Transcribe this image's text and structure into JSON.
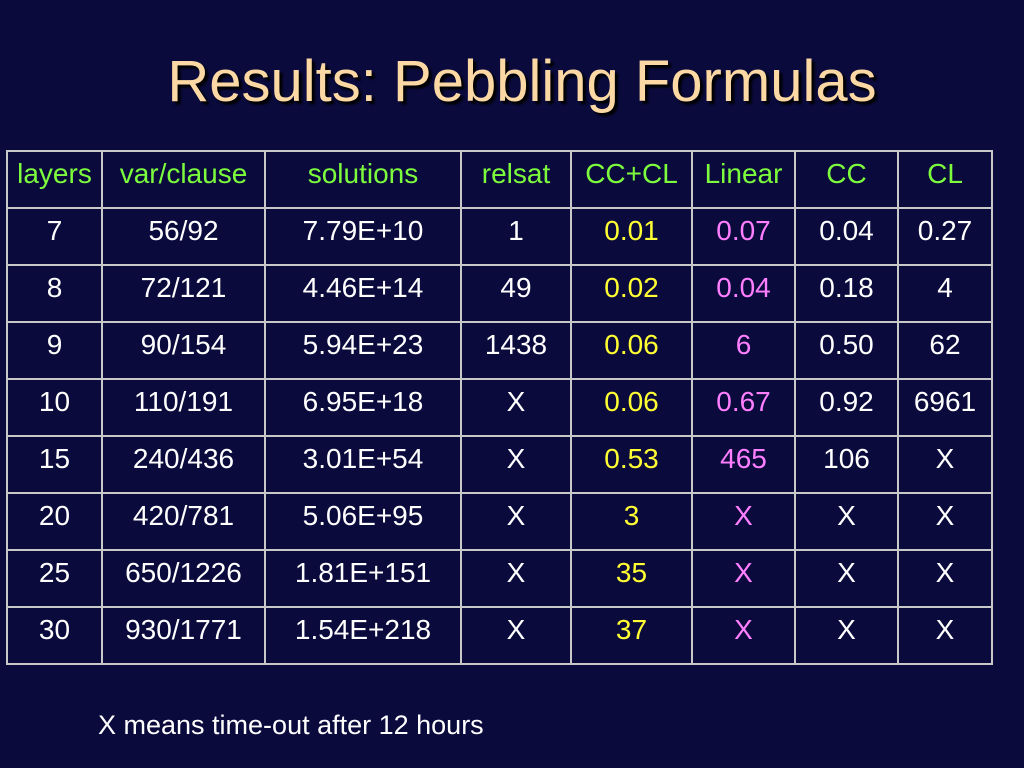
{
  "title": "Results: Pebbling Formulas",
  "table": {
    "headers": [
      "layers",
      "var/clause",
      "solutions",
      "relsat",
      "CC+CL",
      "Linear",
      "CC",
      "CL"
    ],
    "rows": [
      [
        "7",
        "56/92",
        "7.79E+10",
        "1",
        "0.01",
        "0.07",
        "0.04",
        "0.27"
      ],
      [
        "8",
        "72/121",
        "4.46E+14",
        "49",
        "0.02",
        "0.04",
        "0.18",
        "4"
      ],
      [
        "9",
        "90/154",
        "5.94E+23",
        "1438",
        "0.06",
        "6",
        "0.50",
        "62"
      ],
      [
        "10",
        "110/191",
        "6.95E+18",
        "X",
        "0.06",
        "0.67",
        "0.92",
        "6961"
      ],
      [
        "15",
        "240/436",
        "3.01E+54",
        "X",
        "0.53",
        "465",
        "106",
        "X"
      ],
      [
        "20",
        "420/781",
        "5.06E+95",
        "X",
        "3",
        "X",
        "X",
        "X"
      ],
      [
        "25",
        "650/1226",
        "1.81E+151",
        "X",
        "35",
        "X",
        "X",
        "X"
      ],
      [
        "30",
        "930/1771",
        "1.54E+218",
        "X",
        "37",
        "X",
        "X",
        "X"
      ]
    ]
  },
  "colors": {
    "background": "#0a0a3c",
    "title": "#fcd9a4",
    "header_text": "#7cfc3c",
    "ccl_values": "#ffff33",
    "linear_values": "#ff7fff",
    "body_text": "#ffffff"
  },
  "footnote": "X means time-out after 12 hours"
}
